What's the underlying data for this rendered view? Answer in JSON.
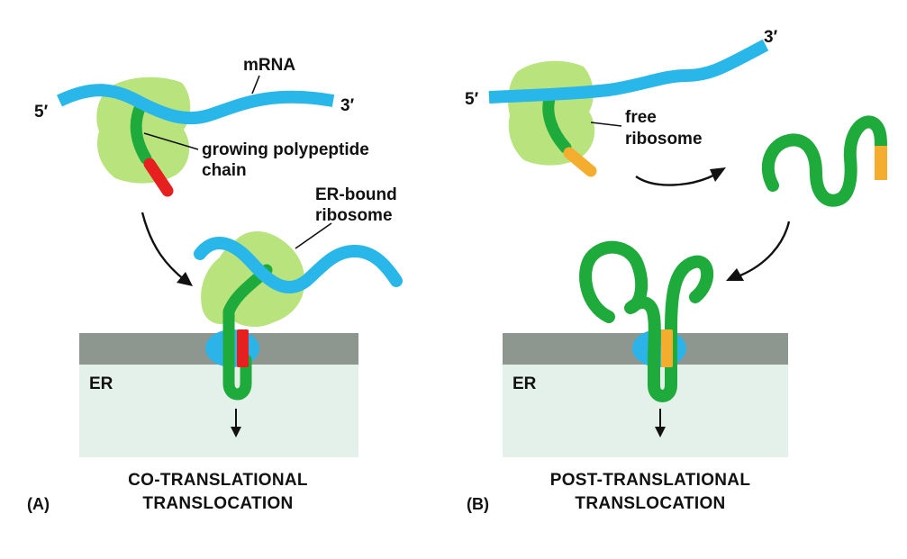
{
  "colors": {
    "mrna": "#29b6e8",
    "ribosome": "#b9e37d",
    "polypeptide": "#1faa3c",
    "signal_red": "#e5201e",
    "signal_orange": "#f5ad2f",
    "membrane": "#8e9690",
    "er_lumen": "#e4f1ea",
    "translocon": "#2cb3e8",
    "text": "#111111"
  },
  "panel_a": {
    "panel_letter": "(A)",
    "five_prime": "5′",
    "three_prime": "3′",
    "mrna_label": "mRNA",
    "polypeptide_label_line1": "growing polypeptide",
    "polypeptide_label_line2": "chain",
    "er_ribosome_label_line1": "ER-bound",
    "er_ribosome_label_line2": "ribosome",
    "er_label": "ER",
    "caption_line1": "CO-TRANSLATIONAL",
    "caption_line2": "TRANSLOCATION"
  },
  "panel_b": {
    "panel_letter": "(B)",
    "five_prime": "5′",
    "three_prime": "3′",
    "free_ribosome_label_line1": "free",
    "free_ribosome_label_line2": "ribosome",
    "er_label": "ER",
    "caption_line1": "POST-TRANSLATIONAL",
    "caption_line2": "TRANSLOCATION"
  }
}
